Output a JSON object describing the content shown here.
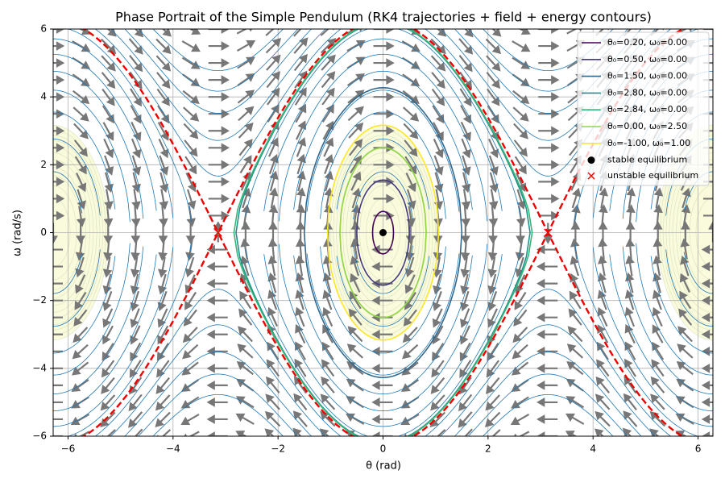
{
  "chart_data": {
    "type": "phase-portrait",
    "title": "Phase Portrait of the Simple Pendulum (RK4 trajectories + field + energy contours)",
    "xlabel": "θ (rad)",
    "ylabel": "ω (rad/s)",
    "xlim": [
      -6.2832,
      6.2832
    ],
    "ylim": [
      -6,
      6
    ],
    "xticks": [
      {
        "value": -6,
        "label": "−6"
      },
      {
        "value": -4,
        "label": "−4"
      },
      {
        "value": -2,
        "label": "−2"
      },
      0,
      2,
      4,
      6
    ],
    "yticks": [
      {
        "value": -6,
        "label": "−6"
      },
      {
        "value": -4,
        "label": "−4"
      },
      {
        "value": -2,
        "label": "−2"
      },
      0,
      2,
      4,
      6
    ],
    "grid": true,
    "legend": "upper right",
    "series": [
      {
        "name": "θ₀=0.20, ω₀=0.00",
        "color": "#440154",
        "theta0": 0.2,
        "omega0": 0.0
      },
      {
        "name": "θ₀=0.50, ω₀=0.00",
        "color": "#443983",
        "theta0": 0.5,
        "omega0": 0.0
      },
      {
        "name": "θ₀=1.50, ω₀=0.00",
        "color": "#31688e",
        "theta0": 1.5,
        "omega0": 0.0
      },
      {
        "name": "θ₀=2.80, ω₀=0.00",
        "color": "#21918c",
        "theta0": 2.8,
        "omega0": 0.0
      },
      {
        "name": "θ₀=2.84, ω₀=0.00",
        "color": "#35b779",
        "theta0": 2.84,
        "omega0": 0.0
      },
      {
        "name": "θ₀=0.00, ω₀=2.50",
        "color": "#90d743",
        "theta0": 0.0,
        "omega0": 2.5
      },
      {
        "name": "θ₀=-1.00, ω₀=1.00",
        "color": "#fde725",
        "theta0": -1.0,
        "omega0": 1.0
      }
    ],
    "points": [
      {
        "name": "stable equilibrium",
        "color": "#000000",
        "marker": "circle",
        "x": [
          0
        ],
        "y": [
          0
        ]
      },
      {
        "name": "unstable equilibrium",
        "color": "#ff0000",
        "marker": "x",
        "x": [
          -3.1416,
          3.1416
        ],
        "y": [
          0,
          0
        ]
      }
    ]
  }
}
